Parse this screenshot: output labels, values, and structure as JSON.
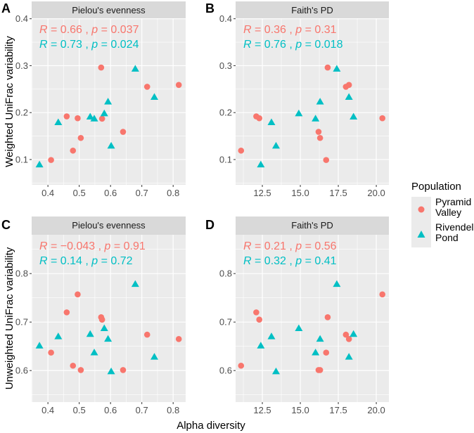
{
  "chart_data": {
    "type": "scatter",
    "xlabel": "Alpha diversity",
    "colors": {
      "Pyramid Valley": "#F8766D",
      "Rivendell Pond": "#00BFC4"
    },
    "legend": {
      "title": "Population",
      "placement": "right",
      "entries": [
        {
          "name": "Pyramid Valley",
          "lines": [
            "Pyramid",
            "Valley"
          ],
          "shape": "circle"
        },
        {
          "name": "Rivendell Pond",
          "lines": [
            "Rivendell",
            "Pond"
          ],
          "shape": "triangle"
        }
      ]
    },
    "panels": [
      {
        "label": "A",
        "strip": "Pielou's evenness",
        "ylabel": "Weighted UniFrac variability",
        "xlim": [
          0.348,
          0.84
        ],
        "ylim": [
          0.046,
          0.401
        ],
        "xticks": [
          0.4,
          0.5,
          0.6,
          0.7,
          0.8
        ],
        "xtick_labels": [
          "0.4",
          "0.5",
          "0.6",
          "0.7",
          "0.8"
        ],
        "yticks": [
          0.1,
          0.2,
          0.3,
          0.4
        ],
        "ytick_labels": [
          "0.1",
          "0.2",
          "0.3",
          "0.4"
        ],
        "annotations": [
          {
            "series": "Pyramid Valley",
            "R": "0.66",
            "p": "0.037"
          },
          {
            "series": "Rivendell Pond",
            "R": "0.73",
            "p": "0.024"
          }
        ],
        "series": [
          {
            "name": "Pyramid Valley",
            "x": [
              0.41,
              0.46,
              0.48,
              0.495,
              0.505,
              0.57,
              0.573,
              0.64,
              0.717,
              0.818
            ],
            "y": [
              0.099,
              0.192,
              0.119,
              0.188,
              0.146,
              0.296,
              0.187,
              0.159,
              0.255,
              0.259
            ]
          },
          {
            "name": "Rivendell Pond",
            "x": [
              0.373,
              0.433,
              0.535,
              0.548,
              0.58,
              0.592,
              0.602,
              0.679,
              0.74
            ],
            "y": [
              0.09,
              0.18,
              0.192,
              0.188,
              0.199,
              0.224,
              0.13,
              0.294,
              0.234
            ]
          }
        ]
      },
      {
        "label": "B",
        "strip": "Faith's PD",
        "ylabel": "",
        "xlim": [
          10.74,
          20.83
        ],
        "ylim": [
          0.046,
          0.401
        ],
        "xticks": [
          12.5,
          15,
          17.5,
          20
        ],
        "xtick_labels": [
          "12.5",
          "15.0",
          "17.5",
          "20.0"
        ],
        "yticks": [
          0.1,
          0.2,
          0.3,
          0.4
        ],
        "ytick_labels": [
          "0.1",
          "0.2",
          "0.3",
          "0.4"
        ],
        "annotations": [
          {
            "series": "Pyramid Valley",
            "R": "0.36",
            "p": "0.31"
          },
          {
            "series": "Rivendell Pond",
            "R": "0.76",
            "p": "0.018"
          }
        ],
        "series": [
          {
            "name": "Pyramid Valley",
            "x": [
              11.1,
              12.1,
              12.3,
              16.2,
              16.3,
              16.7,
              16.8,
              18.0,
              18.2,
              20.4
            ],
            "y": [
              0.119,
              0.192,
              0.188,
              0.159,
              0.146,
              0.099,
              0.296,
              0.255,
              0.259,
              0.188
            ]
          },
          {
            "name": "Rivendell Pond",
            "x": [
              12.4,
              13.1,
              13.4,
              14.9,
              16.0,
              16.3,
              17.4,
              18.2,
              18.5
            ],
            "y": [
              0.09,
              0.18,
              0.13,
              0.199,
              0.188,
              0.224,
              0.294,
              0.234,
              0.192
            ]
          }
        ]
      },
      {
        "label": "C",
        "strip": "Pielou's evenness",
        "ylabel": "Unweighted UniFrac variability",
        "xlim": [
          0.348,
          0.84
        ],
        "ylim": [
          0.535,
          0.88
        ],
        "xticks": [
          0.4,
          0.5,
          0.6,
          0.7,
          0.8
        ],
        "xtick_labels": [
          "0.4",
          "0.5",
          "0.6",
          "0.7",
          "0.8"
        ],
        "yticks": [
          0.6,
          0.7,
          0.8
        ],
        "ytick_labels": [
          "0.6",
          "0.7",
          "0.8"
        ],
        "annotations": [
          {
            "series": "Pyramid Valley",
            "R": "−0.043",
            "p": "0.91"
          },
          {
            "series": "Rivendell Pond",
            "R": "0.14",
            "p": "0.72"
          }
        ],
        "series": [
          {
            "name": "Pyramid Valley",
            "x": [
              0.41,
              0.46,
              0.48,
              0.495,
              0.505,
              0.57,
              0.573,
              0.64,
              0.717,
              0.818
            ],
            "y": [
              0.637,
              0.72,
              0.61,
              0.757,
              0.601,
              0.71,
              0.705,
              0.601,
              0.674,
              0.665
            ]
          },
          {
            "name": "Rivendell Pond",
            "x": [
              0.373,
              0.433,
              0.535,
              0.548,
              0.58,
              0.592,
              0.602,
              0.679,
              0.74
            ],
            "y": [
              0.652,
              0.671,
              0.676,
              0.638,
              0.688,
              0.666,
              0.599,
              0.779,
              0.629
            ]
          }
        ]
      },
      {
        "label": "D",
        "strip": "Faith's PD",
        "ylabel": "",
        "xlim": [
          10.74,
          20.83
        ],
        "ylim": [
          0.535,
          0.88
        ],
        "xticks": [
          12.5,
          15,
          17.5,
          20
        ],
        "xtick_labels": [
          "12.5",
          "15.0",
          "17.5",
          "20.0"
        ],
        "yticks": [
          0.6,
          0.7,
          0.8
        ],
        "ytick_labels": [
          "0.6",
          "0.7",
          "0.8"
        ],
        "annotations": [
          {
            "series": "Pyramid Valley",
            "R": "0.21",
            "p": "0.56"
          },
          {
            "series": "Rivendell Pond",
            "R": "0.32",
            "p": "0.41"
          }
        ],
        "series": [
          {
            "name": "Pyramid Valley",
            "x": [
              11.1,
              12.1,
              12.3,
              16.2,
              16.3,
              16.7,
              16.8,
              18.0,
              18.2,
              20.4
            ],
            "y": [
              0.61,
              0.72,
              0.705,
              0.601,
              0.601,
              0.637,
              0.71,
              0.674,
              0.665,
              0.757
            ]
          },
          {
            "name": "Rivendell Pond",
            "x": [
              12.4,
              13.1,
              13.4,
              14.9,
              16.0,
              16.3,
              17.4,
              18.2,
              18.5
            ],
            "y": [
              0.652,
              0.671,
              0.599,
              0.688,
              0.638,
              0.666,
              0.779,
              0.629,
              0.676
            ]
          }
        ]
      }
    ]
  }
}
